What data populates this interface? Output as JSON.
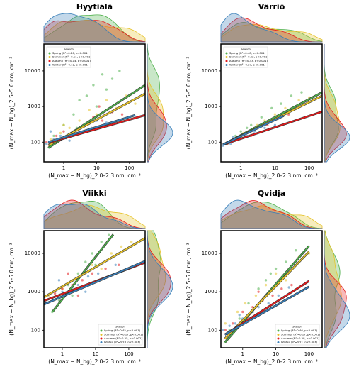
{
  "chart_data": [
    {
      "type": "scatter",
      "title": "Hyytiälä",
      "xlabel": "(N_max − N_bg)_2.0–2.3 nm, cm⁻³",
      "ylabel": "(N_max − N_bg)_2.5–5.0 nm, cm⁻³",
      "log": true,
      "xlim": [
        0.25,
        300
      ],
      "ylim": [
        28,
        57000
      ],
      "xticks": [
        1,
        10,
        100
      ],
      "yticks": [
        100,
        1000,
        10000
      ],
      "legend_title": "Season",
      "legend": "upper left",
      "series": [
        {
          "name": "Spring (R²=0.26, p<0.001)",
          "color": "#4daf4a",
          "x": [
            0.5,
            1,
            2,
            3,
            5,
            8,
            10,
            15,
            20,
            30,
            50,
            2.5
          ],
          "values": [
            150,
            300,
            600,
            1500,
            2000,
            4000,
            1000,
            8000,
            3000,
            6000,
            10000,
            250
          ],
          "fit": {
            "x": [
              0.34,
              300
            ],
            "y": [
              69,
              4000
            ]
          }
        },
        {
          "name": "Summer (R²=0.11, p<0.001)",
          "color": "#e6c229",
          "x": [
            0.4,
            0.8,
            1.5,
            3,
            6,
            10,
            20,
            40,
            80,
            150,
            1,
            5
          ],
          "values": [
            120,
            180,
            250,
            400,
            800,
            600,
            1500,
            900,
            2000,
            1200,
            300,
            200
          ],
          "fit": {
            "x": [
              0.34,
              300
            ],
            "y": [
              80,
              2300
            ]
          }
        },
        {
          "name": "Autumn (R²=0.14, p<0.001)",
          "color": "#e41a1c",
          "x": [
            0.3,
            0.6,
            1,
            2,
            4,
            8,
            15,
            30,
            60,
            0.5,
            3,
            12
          ],
          "values": [
            100,
            150,
            200,
            180,
            300,
            500,
            400,
            700,
            600,
            90,
            250,
            1000
          ],
          "fit": {
            "x": [
              0.34,
              300
            ],
            "y": [
              95,
              575
            ]
          }
        },
        {
          "name": "Winter (R²=0.12, p<0.001)",
          "color": "#377eb8",
          "x": [
            0.3,
            0.5,
            0.8,
            1.2,
            2,
            3,
            5,
            10,
            20,
            0.4,
            1.5,
            7
          ],
          "values": [
            90,
            120,
            150,
            130,
            200,
            180,
            300,
            400,
            350,
            200,
            110,
            250
          ],
          "fit": {
            "x": [
              0.34,
              150
            ],
            "y": [
              100,
              575
            ]
          }
        }
      ]
    },
    {
      "type": "scatter",
      "title": "Värriö",
      "xlabel": "(N_max − N_bg)_2.0–2.3 nm, cm⁻³",
      "ylabel": "(N_max − N_bg)_2.5–5.0 nm, cm⁻³",
      "log": true,
      "xlim": [
        0.26,
        240
      ],
      "ylim": [
        28,
        57000
      ],
      "xticks": [
        1,
        10,
        100
      ],
      "yticks": [
        100,
        1000,
        10000
      ],
      "legend_title": "Season",
      "legend": "upper left",
      "series": [
        {
          "name": "Spring (R²=0.48, p<0.001)",
          "color": "#4daf4a",
          "x": [
            0.4,
            0.7,
            1,
            2,
            4,
            8,
            15,
            30,
            60,
            1.5
          ],
          "values": [
            90,
            150,
            200,
            300,
            500,
            900,
            1200,
            2000,
            2500,
            250
          ],
          "fit": {
            "x": [
              0.3,
              240
            ],
            "y": [
              85,
              2500
            ]
          }
        },
        {
          "name": "Summer (R²=0.52, p<0.001)",
          "color": "#e6c229",
          "x": [
            0.5,
            0.8,
            1.2,
            2.5,
            5,
            10,
            20,
            50,
            100,
            3
          ],
          "values": [
            100,
            130,
            180,
            250,
            400,
            600,
            900,
            1500,
            1800,
            300
          ],
          "fit": {
            "x": [
              0.3,
              240
            ],
            "y": [
              85,
              2000
            ]
          }
        },
        {
          "name": "Autumn (R²=0.43, p<0.001)",
          "color": "#e41a1c",
          "x": [
            0.4,
            0.6,
            1,
            1.5,
            3,
            6,
            12,
            25,
            2,
            0.8
          ],
          "values": [
            90,
            110,
            150,
            180,
            250,
            300,
            450,
            600,
            150,
            120
          ],
          "fit": {
            "x": [
              0.3,
              240
            ],
            "y": [
              85,
              720
            ]
          }
        },
        {
          "name": "Winter (R²=0.27, p<0.001)",
          "color": "#377eb8",
          "x": [
            0.3,
            0.4,
            0.5,
            0.7,
            1,
            1.5,
            2.5,
            5,
            10,
            0.6
          ],
          "values": [
            80,
            100,
            90,
            120,
            130,
            150,
            200,
            250,
            300,
            140
          ],
          "fit": {
            "x": [
              0.3,
              18
            ],
            "y": [
              85,
              550
            ]
          }
        }
      ]
    },
    {
      "type": "scatter",
      "title": "Viikki",
      "xlabel": "(N_max − N_bg)_2.0–2.3 nm, cm⁻³",
      "ylabel": "(N_max − N_bg)_2.5–5.0 nm, cm⁻³",
      "log": true,
      "xlim": [
        0.28,
        310
      ],
      "ylim": [
        35,
        39000
      ],
      "xticks": [
        1,
        10,
        100
      ],
      "yticks": [
        100,
        1000,
        10000
      ],
      "legend_title": "Season",
      "legend": "lower right",
      "series": [
        {
          "name": "Spring (R²=0.45, p<0.001)",
          "color": "#4daf4a",
          "x": [
            0.5,
            0.8,
            1.5,
            3,
            5,
            8,
            15,
            25,
            2,
            10
          ],
          "values": [
            300,
            600,
            1500,
            3000,
            6000,
            10000,
            20000,
            30000,
            800,
            5000
          ],
          "fit": {
            "x": [
              0.52,
              34
            ],
            "y": [
              310,
              31000
            ]
          }
        },
        {
          "name": "Summer (R²=0.17, p<0.001)",
          "color": "#e6c229",
          "x": [
            0.4,
            1,
            2,
            4,
            8,
            15,
            30,
            60,
            120,
            6
          ],
          "values": [
            800,
            1200,
            2000,
            3000,
            5000,
            4000,
            10000,
            15000,
            20000,
            1500
          ],
          "fit": {
            "x": [
              0.28,
              310
            ],
            "y": [
              720,
              25000
            ]
          }
        },
        {
          "name": "Autumn (R²=0.25, p<0.002)",
          "color": "#e41a1c",
          "x": [
            0.3,
            0.6,
            1,
            2,
            4,
            8,
            20,
            50,
            1.5,
            3
          ],
          "values": [
            600,
            900,
            1200,
            1500,
            2000,
            3000,
            4000,
            5000,
            3000,
            800
          ],
          "fit": {
            "x": [
              0.28,
              310
            ],
            "y": [
              580,
              5800
            ]
          }
        },
        {
          "name": "Winter (R²=0.28, p<0.001)",
          "color": "#377eb8",
          "x": [
            0.3,
            0.5,
            1,
            2,
            3,
            6,
            12,
            40,
            0.8,
            5
          ],
          "values": [
            500,
            700,
            1000,
            1300,
            1500,
            2500,
            3000,
            5000,
            2000,
            1000
          ],
          "fit": {
            "x": [
              0.28,
              310
            ],
            "y": [
              470,
              6300
            ]
          }
        }
      ]
    },
    {
      "type": "scatter",
      "title": "Qvidja",
      "xlabel": "(N_max − N_bg)_2.0–2.3 nm, cm⁻³",
      "ylabel": "(N_max − N_bg)_2.5–5.0 nm, cm⁻³",
      "log": true,
      "xlim": [
        0.22,
        250
      ],
      "ylim": [
        35,
        39000
      ],
      "xticks": [
        1,
        10,
        100
      ],
      "yticks": [
        100,
        1000,
        10000
      ],
      "legend_title": "Season",
      "legend": "lower right",
      "series": [
        {
          "name": "Spring (R²=0.46, p<0.001)",
          "color": "#4daf4a",
          "x": [
            0.4,
            0.8,
            1.5,
            3,
            5,
            10,
            20,
            40,
            2,
            7
          ],
          "values": [
            100,
            200,
            500,
            1200,
            2000,
            4000,
            6000,
            12000,
            300,
            3000
          ],
          "fit": {
            "x": [
              0.29,
              100
            ],
            "y": [
              48,
              15500
            ]
          }
        },
        {
          "name": "Summer (R²=0.17, p<0.001)",
          "color": "#e6c229",
          "x": [
            0.3,
            0.7,
            1.2,
            2.5,
            5,
            10,
            20,
            50,
            100,
            4
          ],
          "values": [
            150,
            300,
            500,
            800,
            1500,
            3000,
            2000,
            8000,
            10000,
            600
          ],
          "fit": {
            "x": [
              0.29,
              100
            ],
            "y": [
              60,
              11000
            ]
          }
        },
        {
          "name": "Autumn (R²=0.28, p<0.001)",
          "color": "#e41a1c",
          "x": [
            0.3,
            0.5,
            1,
            2,
            4,
            8,
            15,
            1.5,
            3,
            30
          ],
          "values": [
            100,
            150,
            300,
            400,
            600,
            800,
            1200,
            200,
            1000,
            1500
          ],
          "fit": {
            "x": [
              0.29,
              100
            ],
            "y": [
              77,
              1900
            ]
          }
        },
        {
          "name": "Winter (R²=0.21, p<0.001)",
          "color": "#377eb8",
          "x": [
            0.25,
            0.4,
            0.6,
            1,
            2,
            3,
            6,
            12,
            0.8,
            25
          ],
          "values": [
            100,
            130,
            150,
            200,
            300,
            400,
            500,
            800,
            250,
            1300
          ],
          "fit": {
            "x": [
              0.29,
              100
            ],
            "y": [
              77,
              1350
            ]
          }
        }
      ]
    }
  ]
}
